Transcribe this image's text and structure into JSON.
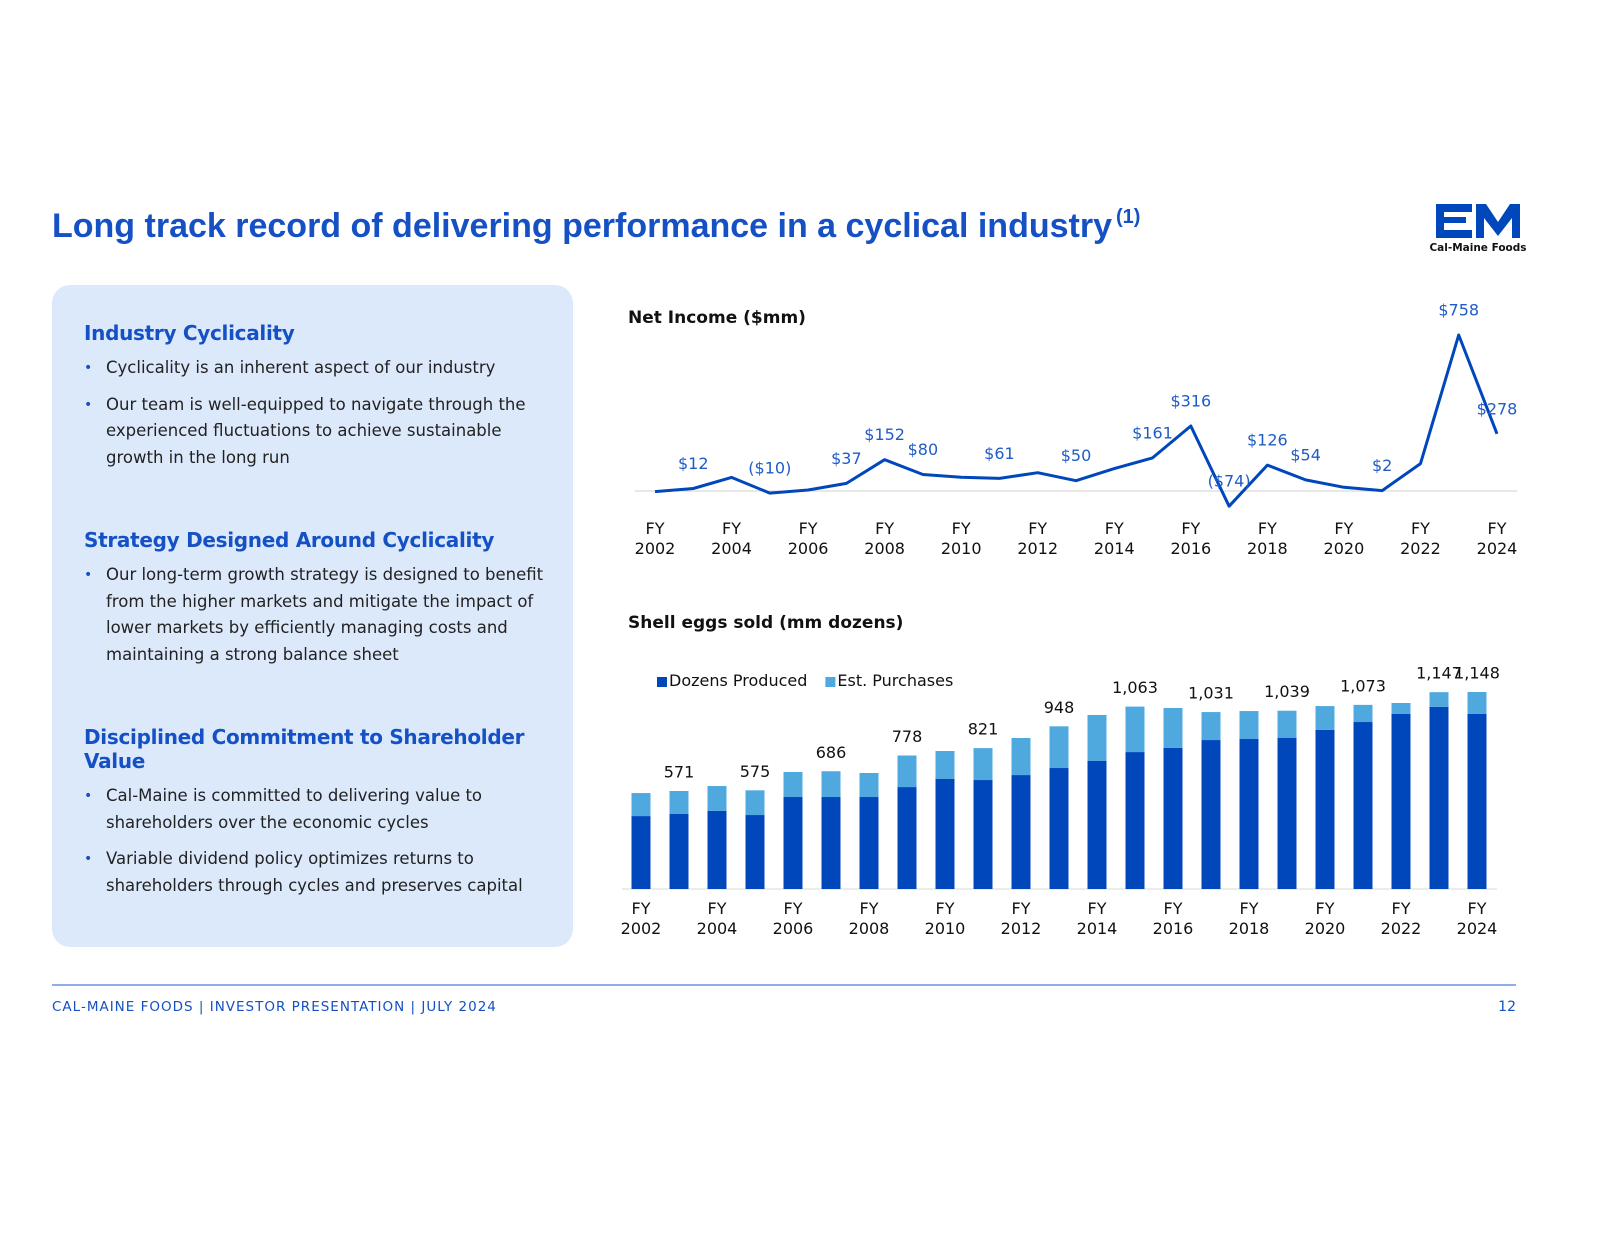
{
  "header": {
    "title": "Long track record of delivering performance in a cyclical industry",
    "footnote_marker": "(1)"
  },
  "logo": {
    "text": "Cal-Maine Foods"
  },
  "sidebar": {
    "sections": [
      {
        "heading": "Industry Cyclicality",
        "bullets": [
          "Cyclicality is an inherent aspect of our industry",
          "Our team is well-equipped to navigate through the experienced fluctuations to achieve sustainable growth in the long run"
        ]
      },
      {
        "heading": "Strategy Designed Around Cyclicality",
        "bullets": [
          "Our long-term growth strategy is designed to benefit from the higher markets and mitigate the impact of lower markets by efficiently managing costs and maintaining a strong balance sheet"
        ]
      },
      {
        "heading": "Disciplined Commitment to Shareholder Value",
        "bullets": [
          "Cal-Maine is committed to delivering value to shareholders over the economic cycles",
          "Variable dividend policy optimizes returns to shareholders through cycles and preserves capital"
        ]
      }
    ]
  },
  "chart_data": [
    {
      "type": "line",
      "title": "Net Income ($mm)",
      "color": "#0047bb",
      "categories": [
        "FY 2002",
        null,
        "FY 2004",
        null,
        "FY 2006",
        null,
        "FY 2008",
        null,
        "FY 2010",
        null,
        "FY 2012",
        null,
        "FY 2014",
        null,
        "FY 2016",
        null,
        "FY 2018",
        null,
        "FY 2020",
        null,
        "FY 2022",
        null,
        "FY 2024"
      ],
      "values": [
        -3,
        12,
        66,
        -10,
        5,
        37,
        152,
        80,
        67,
        61,
        89,
        50,
        109,
        161,
        316,
        -74,
        126,
        54,
        18,
        2,
        133,
        758,
        278
      ],
      "value_labels": [
        null,
        "$12",
        null,
        "($10)",
        null,
        "$37",
        "$152",
        "$80",
        null,
        "$61",
        null,
        "$50",
        null,
        "$161",
        "$316",
        "($74)",
        "$126",
        "$54",
        null,
        "$2",
        null,
        "$758",
        "$278"
      ]
    },
    {
      "type": "bar",
      "stacked": true,
      "title": "Shell eggs sold (mm dozens)",
      "legend": "top-left",
      "categories": [
        "FY 2002",
        null,
        "FY 2004",
        null,
        "FY 2006",
        null,
        "FY 2008",
        null,
        "FY 2010",
        null,
        "FY 2012",
        null,
        "FY 2014",
        null,
        "FY 2016",
        null,
        "FY 2018",
        null,
        "FY 2020",
        null,
        "FY 2022",
        null,
        "FY 2024"
      ],
      "series": [
        {
          "name": "Dozens Produced",
          "color": "#0047bb",
          "values": [
            425,
            437,
            455,
            431,
            536,
            536,
            536,
            594,
            641,
            635,
            664,
            705,
            746,
            798,
            822,
            868,
            874,
            880,
            927,
            973,
            1020,
            1061,
            1020
          ]
        },
        {
          "name": "Est. Purchases",
          "color": "#4fa8de",
          "values": [
            134,
            134,
            145,
            144,
            146,
            150,
            140,
            184,
            163,
            186,
            216,
            243,
            268,
            265,
            233,
            163,
            163,
            159,
            139,
            100,
            64,
            86,
            128
          ]
        }
      ],
      "total_labels": [
        null,
        "571",
        null,
        "575",
        null,
        "686",
        null,
        "778",
        null,
        "821",
        null,
        "948",
        null,
        "1,063",
        null,
        "1,031",
        null,
        "1,039",
        null,
        "1,073",
        null,
        "1,147",
        "1,148"
      ]
    }
  ],
  "footer": {
    "text": "CAL-MAINE FOODS | INVESTOR PRESENTATION | JULY 2024",
    "page": "12"
  }
}
